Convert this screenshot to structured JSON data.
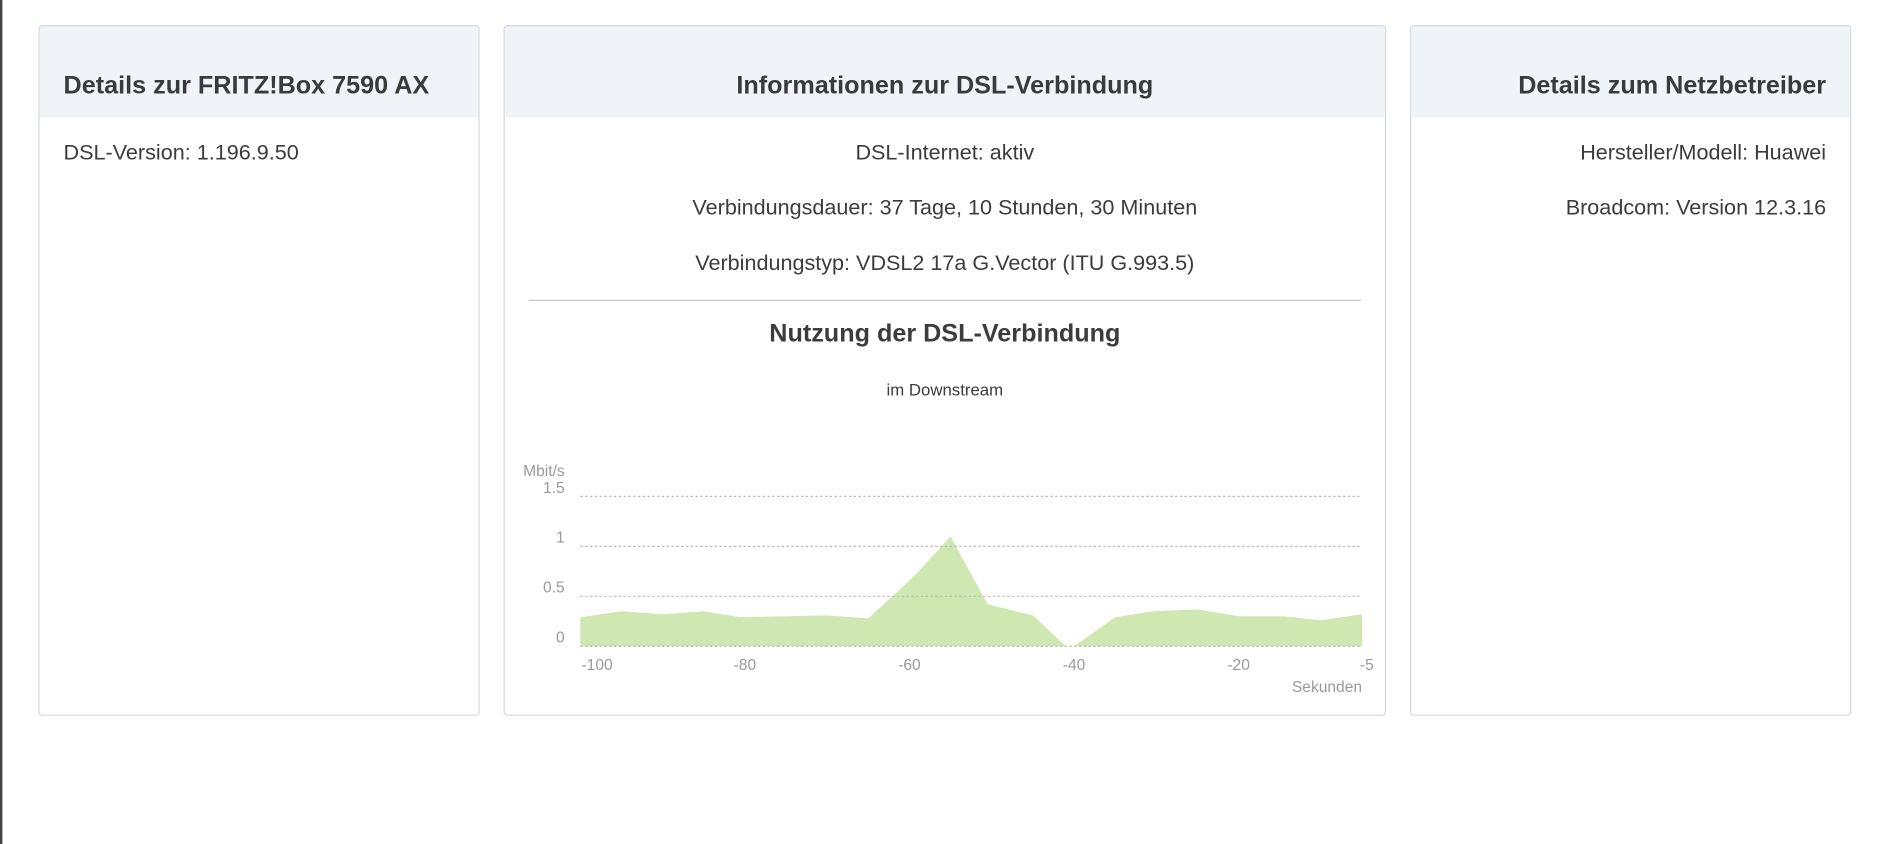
{
  "panels": {
    "device": {
      "title": "Details zur FRITZ!Box 7590 AX",
      "lines": [
        "DSL-Version: 1.196.9.50"
      ]
    },
    "dsl": {
      "title": "Informationen zur DSL-Verbindung",
      "lines": [
        "DSL-Internet: aktiv",
        "Verbindungsdauer: 37 Tage, 10 Stunden, 30 Minuten",
        "Verbindungstyp: VDSL2 17a G.Vector (ITU G.993.5)"
      ],
      "usage_title": "Nutzung der DSL-Verbindung"
    },
    "provider": {
      "title": "Details zum Netzbetreiber",
      "lines": [
        "Hersteller/Modell: Huawei",
        "Broadcom: Version 12.3.16"
      ]
    }
  },
  "chart_data": {
    "type": "area",
    "title": "im Downstream",
    "xlabel": "Sekunden",
    "ylabel": "Mbit/s",
    "xlim": [
      -100,
      -5
    ],
    "ylim": [
      0,
      1.5
    ],
    "xticks": [
      "-100",
      "-80",
      "-60",
      "-40",
      "-20",
      "-5"
    ],
    "yticks": [
      "0",
      "0.5",
      "1",
      "1.5"
    ],
    "grid": true,
    "fill_color": "#cfe7b1",
    "x": [
      -100,
      -95,
      -90,
      -85,
      -80.5,
      -70,
      -65,
      -60.5,
      -59,
      -55,
      -50.5,
      -45,
      -41,
      -40,
      -35,
      -30.5,
      -25,
      -20,
      -14.5,
      -10,
      -5
    ],
    "values": [
      0.29,
      0.35,
      0.32,
      0.35,
      0.29,
      0.31,
      0.28,
      0.62,
      0.74,
      1.1,
      0.42,
      0.31,
      0.0,
      0.0,
      0.29,
      0.35,
      0.37,
      0.3,
      0.3,
      0.26,
      0.32
    ]
  }
}
